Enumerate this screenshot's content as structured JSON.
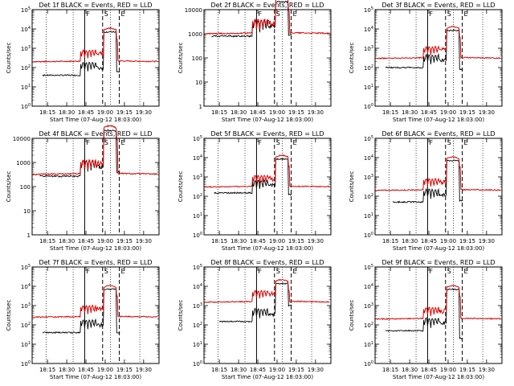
{
  "figure": {
    "xlabel": "Start Time (07-Aug-12 18:03:00)",
    "ylabel": "Counts/sec",
    "x_ticks": [
      "18:15",
      "18:30",
      "18:45",
      "19:00",
      "19:15",
      "19:30"
    ],
    "x_tick_minutes": [
      12,
      27,
      42,
      57,
      72,
      87
    ],
    "x_range_minutes": [
      0,
      99
    ],
    "colors": {
      "events": "#000000",
      "lld": "#dd0000",
      "axes": "#000000"
    }
  },
  "chart_data": [
    {
      "type": "line",
      "title": "Det 1f BLACK = Events, RED = LLD",
      "scale": "log",
      "ylim": [
        1,
        100000
      ],
      "y_ticks": [
        "10^0",
        "10^1",
        "10^2",
        "10^3",
        "10^4",
        "10^5"
      ],
      "events_base": 40,
      "lld_base": 200,
      "lld_peak": 10000,
      "events_end": 60,
      "events_start_min": 8,
      "flags": [
        "F",
        "S",
        "E"
      ],
      "series": [
        {
          "name": "Events",
          "color": "#000000"
        },
        {
          "name": "LLD",
          "color": "#dd0000"
        }
      ]
    },
    {
      "type": "line",
      "title": "Det 2f BLACK = Events, RED = LLD",
      "scale": "log",
      "ylim": [
        1,
        10000
      ],
      "y_ticks": [
        "1",
        "10",
        "100",
        "1000",
        "10000"
      ],
      "events_base": 800,
      "lld_base": 1000,
      "lld_peak": 30000,
      "events_end": 900,
      "events_start_min": 6,
      "flags": [
        "F",
        "S",
        "E"
      ],
      "series": [
        {
          "name": "Events",
          "color": "#000000"
        },
        {
          "name": "LLD",
          "color": "#dd0000"
        }
      ]
    },
    {
      "type": "line",
      "title": "Det 3f BLACK = Events, RED = LLD",
      "scale": "log",
      "ylim": [
        1,
        100000
      ],
      "y_ticks": [
        "10^0",
        "10^1",
        "10^2",
        "10^3",
        "10^4",
        "10^5"
      ],
      "events_base": 100,
      "lld_base": 300,
      "lld_peak": 12000,
      "events_end": 80,
      "events_start_min": 8,
      "flags": [
        "F",
        "S",
        "E"
      ],
      "series": [
        {
          "name": "Events",
          "color": "#000000"
        },
        {
          "name": "LLD",
          "color": "#dd0000"
        }
      ]
    },
    {
      "type": "line",
      "title": "Det 4f BLACK = Events, RED = LLD",
      "scale": "log",
      "ylim": [
        1,
        10000
      ],
      "y_ticks": [
        "1",
        "10",
        "100",
        "1000",
        "10000"
      ],
      "events_base": 270,
      "lld_base": 320,
      "lld_peak": 30000,
      "events_end": 400,
      "events_start_min": 6,
      "flags": [
        "F",
        "S",
        "E"
      ],
      "series": [
        {
          "name": "Events",
          "color": "#000000"
        },
        {
          "name": "LLD",
          "color": "#dd0000"
        }
      ]
    },
    {
      "type": "line",
      "title": "Det 5f BLACK = Events, RED = LLD",
      "scale": "log",
      "ylim": [
        1,
        100000
      ],
      "y_ticks": [
        "10^0",
        "10^1",
        "10^2",
        "10^3",
        "10^4",
        "10^5"
      ],
      "events_base": 150,
      "lld_base": 300,
      "lld_peak": 12000,
      "events_end": 120,
      "events_start_min": 8,
      "flags": [
        "F",
        "S",
        "E"
      ],
      "series": [
        {
          "name": "Events",
          "color": "#000000"
        },
        {
          "name": "LLD",
          "color": "#dd0000"
        }
      ]
    },
    {
      "type": "line",
      "title": "Det 6f BLACK = Events, RED = LLD",
      "scale": "log",
      "ylim": [
        1,
        100000
      ],
      "y_ticks": [
        "10^0",
        "10^1",
        "10^2",
        "10^3",
        "10^4",
        "10^5"
      ],
      "events_base": 50,
      "lld_base": 200,
      "lld_peak": 10000,
      "events_end": 60,
      "events_start_min": 14,
      "flags": [
        "F",
        "S",
        "E"
      ],
      "series": [
        {
          "name": "Events",
          "color": "#000000"
        },
        {
          "name": "LLD",
          "color": "#dd0000"
        }
      ]
    },
    {
      "type": "line",
      "title": "Det 7f BLACK = Events, RED = LLD",
      "scale": "log",
      "ylim": [
        1,
        100000
      ],
      "y_ticks": [
        "10^0",
        "10^1",
        "10^2",
        "10^3",
        "10^4",
        "10^5"
      ],
      "events_base": 40,
      "lld_base": 250,
      "lld_peak": 10000,
      "events_end": 40,
      "events_start_min": 8,
      "flags": [
        "F",
        "S",
        "E"
      ],
      "series": [
        {
          "name": "Events",
          "color": "#000000"
        },
        {
          "name": "LLD",
          "color": "#dd0000"
        }
      ]
    },
    {
      "type": "line",
      "title": "Det 8f BLACK = Events, RED = LLD",
      "scale": "log",
      "ylim": [
        1,
        100000
      ],
      "y_ticks": [
        "10^0",
        "10^1",
        "10^2",
        "10^3",
        "10^4",
        "10^5"
      ],
      "events_base": 150,
      "lld_base": 1500,
      "lld_peak": 20000,
      "events_end": 1000,
      "events_start_min": 12,
      "flags": [
        "F",
        "S",
        "E"
      ],
      "series": [
        {
          "name": "Events",
          "color": "#000000"
        },
        {
          "name": "LLD",
          "color": "#dd0000"
        }
      ]
    },
    {
      "type": "line",
      "title": "Det 9f BLACK = Events, RED = LLD",
      "scale": "log",
      "ylim": [
        1,
        100000
      ],
      "y_ticks": [
        "10^0",
        "10^1",
        "10^2",
        "10^3",
        "10^4",
        "10^5"
      ],
      "events_base": 50,
      "lld_base": 200,
      "lld_peak": 10000,
      "events_end": 20,
      "events_start_min": 8,
      "flags": [
        "F",
        "S",
        "E"
      ],
      "series": [
        {
          "name": "Events",
          "color": "#000000"
        },
        {
          "name": "LLD",
          "color": "#dd0000"
        }
      ]
    }
  ]
}
